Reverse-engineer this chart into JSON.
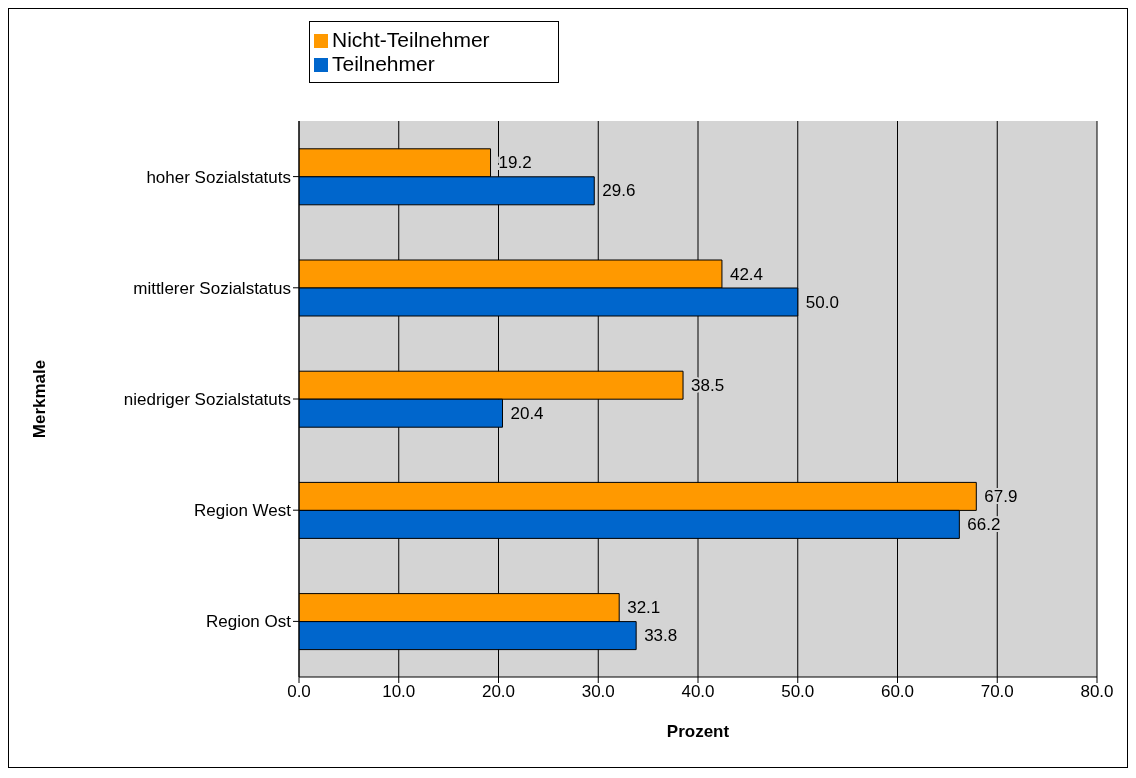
{
  "chart_data": {
    "type": "bar",
    "orientation": "horizontal",
    "xlabel": "Prozent",
    "ylabel": "Merkmale",
    "categories": [
      "hoher Sozialstatuts",
      "mittlerer Sozialstatus",
      "niedriger Sozialstatuts",
      "Region West",
      "Region Ost"
    ],
    "series": [
      {
        "name": "Nicht-Teilnehmer",
        "color": "#ff9900",
        "values": [
          19.2,
          42.4,
          38.5,
          67.9,
          32.1
        ],
        "value_labels": [
          "19.2",
          "42.4",
          "38.5",
          "67.9",
          "32.1"
        ]
      },
      {
        "name": "Teilnehmer",
        "color": "#0066cc",
        "values": [
          29.6,
          50.0,
          20.4,
          66.2,
          33.8
        ],
        "value_labels": [
          "29.6",
          "50.0",
          "20.4",
          "66.2",
          "33.8"
        ]
      }
    ],
    "xlim": [
      0,
      80
    ],
    "xticks": [
      {
        "value": 0,
        "label": "0.0"
      },
      {
        "value": 10,
        "label": "10.0"
      },
      {
        "value": 20,
        "label": "20.0"
      },
      {
        "value": 30,
        "label": "30.0"
      },
      {
        "value": 40,
        "label": "40.0"
      },
      {
        "value": 50,
        "label": "50.0"
      },
      {
        "value": 60,
        "label": "60.0"
      },
      {
        "value": 70,
        "label": "70.0"
      },
      {
        "value": 80,
        "label": "80.0"
      }
    ],
    "grid": "x",
    "legend": "top left"
  }
}
